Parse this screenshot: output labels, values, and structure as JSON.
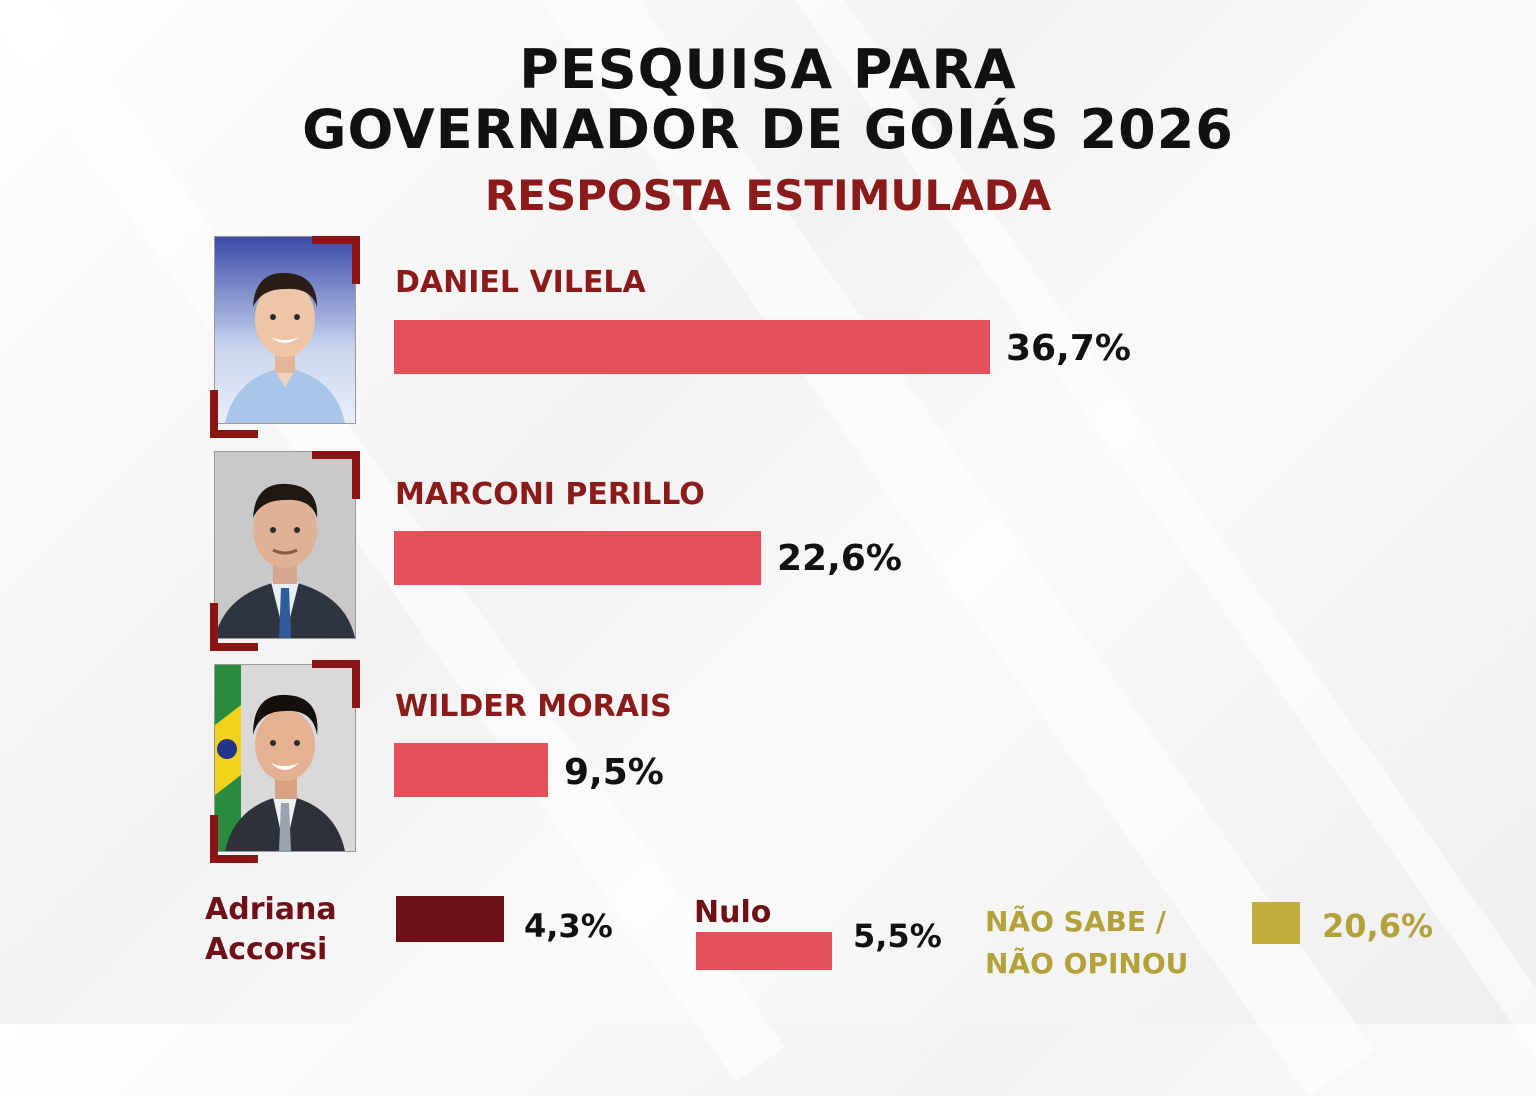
{
  "header": {
    "title_line1": "PESQUISA PARA",
    "title_line2": "GOVERNADOR DE GOIÁS 2026",
    "subtitle": "RESPOSTA ESTIMULADA"
  },
  "colors": {
    "accent_dark_red": "#8b1a1a",
    "bar_red": "#e4505a",
    "adriana_box": "#6e1018",
    "nao_sabe_box": "#c2ae3c",
    "nao_sabe_text": "#b3a23a"
  },
  "chart_data": {
    "type": "bar",
    "title": "PESQUISA PARA GOVERNADOR DE GOIÁS 2026",
    "subtitle": "RESPOSTA ESTIMULADA",
    "categories": [
      "DANIEL VILELA",
      "MARCONI PERILLO",
      "WILDER MORAIS"
    ],
    "values": [
      36.7,
      22.6,
      9.5
    ],
    "value_labels": [
      "36,7%",
      "22,6%",
      "9,5%"
    ],
    "orientation": "horizontal",
    "xlim": [
      0,
      100
    ],
    "grid": false,
    "extra": [
      {
        "label_lines": [
          "Adriana",
          "Accorsi"
        ],
        "value": 4.3,
        "value_label": "4,3%"
      },
      {
        "label_lines": [
          "Nulo"
        ],
        "value": 5.5,
        "value_label": "5,5%"
      },
      {
        "label_lines": [
          "NÃO SABE /",
          "NÃO OPINOU"
        ],
        "value": 20.6,
        "value_label": "20,6%"
      }
    ]
  }
}
